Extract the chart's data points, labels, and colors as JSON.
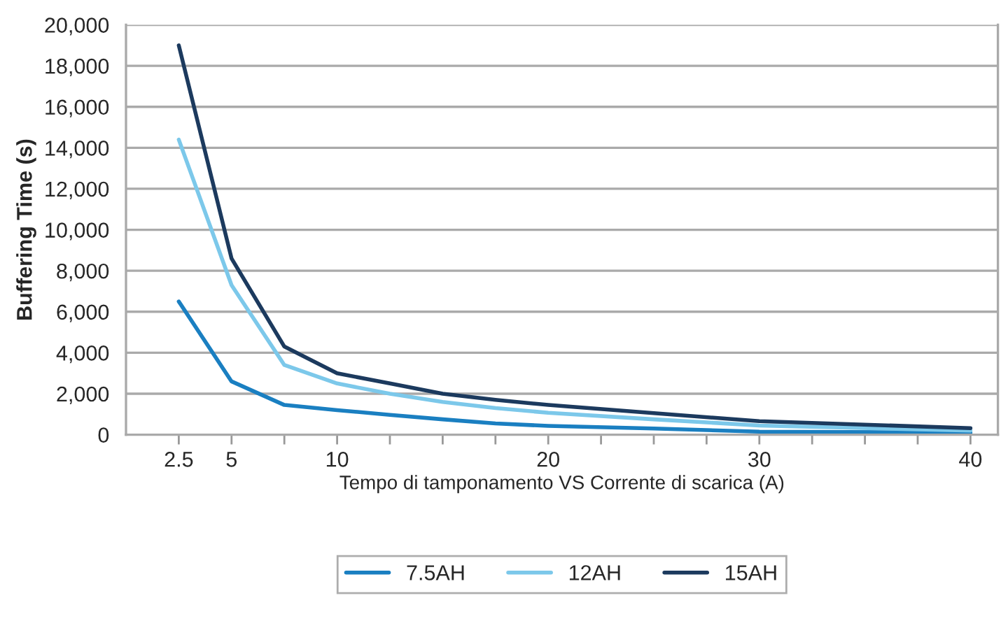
{
  "chart_data": {
    "type": "line",
    "xlabel": "Tempo di tamponamento VS Corrente di scarica (A)",
    "ylabel": "Buffering Time (s)",
    "x": [
      2.5,
      5,
      7.5,
      10,
      12.5,
      15,
      17.5,
      20,
      25,
      30,
      40
    ],
    "series": [
      {
        "name": "7.5AH",
        "color": "#1a7fc1",
        "values": [
          6500,
          2600,
          1450,
          1200,
          970,
          750,
          550,
          430,
          300,
          150,
          100
        ]
      },
      {
        "name": "12AH",
        "color": "#7cc8ea",
        "values": [
          14400,
          7300,
          3400,
          2500,
          2000,
          1600,
          1300,
          1070,
          750,
          450,
          200
        ]
      },
      {
        "name": "15AH",
        "color": "#1c3a5e",
        "values": [
          19000,
          8600,
          4300,
          3000,
          2500,
          2000,
          1700,
          1450,
          1050,
          660,
          320
        ]
      }
    ],
    "xlim": [
      0,
      41.3
    ],
    "xticks": [
      2.5,
      5,
      {
        "value": 7.5,
        "label": null
      },
      10,
      {
        "value": 12.5,
        "label": null
      },
      {
        "value": 15,
        "label": null
      },
      {
        "value": 17.5,
        "label": null
      },
      20,
      {
        "value": 22.5,
        "label": null
      },
      {
        "value": 25,
        "label": null
      },
      {
        "value": 27.5,
        "label": null
      },
      30,
      {
        "value": 32.5,
        "label": null
      },
      {
        "value": 35,
        "label": null
      },
      {
        "value": 37.5,
        "label": null
      },
      40
    ],
    "ylim": [
      0,
      20000
    ],
    "yticks": [
      {
        "value": 0,
        "label": "0"
      },
      {
        "value": 2000,
        "label": "2,000"
      },
      {
        "value": 4000,
        "label": "4,000"
      },
      {
        "value": 6000,
        "label": "6,000"
      },
      {
        "value": 8000,
        "label": "8,000"
      },
      {
        "value": 10000,
        "label": "10,000"
      },
      {
        "value": 12000,
        "label": "12,000"
      },
      {
        "value": 14000,
        "label": "14,000"
      },
      {
        "value": 16000,
        "label": "16,000"
      },
      {
        "value": 18000,
        "label": "18,000"
      },
      {
        "value": 20000,
        "label": "20,000"
      }
    ],
    "grid": "y",
    "legend": "bottom",
    "marker": "none",
    "line_style": "solid"
  }
}
